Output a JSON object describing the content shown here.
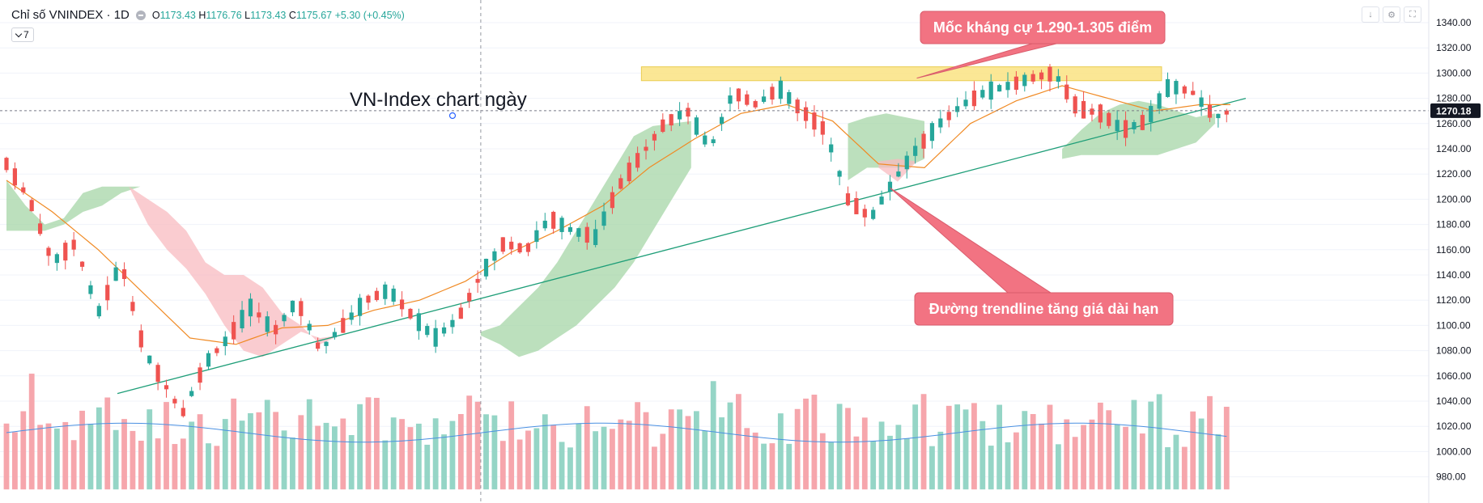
{
  "header": {
    "symbol": "Chỉ số VNINDEX · 1D",
    "open_label": "O",
    "open": "1173.43",
    "high_label": "H",
    "high": "1176.76",
    "low_label": "L",
    "low": "1173.43",
    "close_label": "C",
    "close": "1175.67",
    "change": "+5.30 (+0.45%)",
    "interval_value": "7",
    "tool_icons": [
      "arrow-down-icon",
      "settings-icon",
      "fullscreen-icon"
    ]
  },
  "colors": {
    "up": "#26a69a",
    "down": "#ef5350",
    "vol_up": "#8fd3c3",
    "vol_down": "#f5a1a8",
    "cloud_green": "#a5d6a7",
    "cloud_red": "#f8bbc0",
    "ema": "#f08a24",
    "vol_ma": "#4a90e2",
    "trend": "#1e9e78",
    "zone": "#fbe58a",
    "callout": "#f27382",
    "current_price_bg": "#131722"
  },
  "chart_data": {
    "type": "candlestick",
    "title": "VN-Index chart ngày",
    "ylim": [
      970,
      1345
    ],
    "y_ticks": [
      1340,
      1320,
      1300,
      1280,
      1260,
      1240,
      1220,
      1200,
      1180,
      1160,
      1140,
      1120,
      1100,
      1080,
      1060,
      1040,
      1020,
      1000,
      980
    ],
    "y_tick_labels": [
      "1340.00",
      "1320.00",
      "1300.00",
      "1280.00",
      "1260.00",
      "1240.00",
      "1220.00",
      "1200.00",
      "1180.00",
      "1160.00",
      "1140.00",
      "1120.00",
      "1100.00",
      "1080.00",
      "1060.00",
      "1040.00",
      "1020.00",
      "1000.00",
      "980.00"
    ],
    "current_price": 1270.18,
    "current_price_label": "1270.18",
    "close_path": [
      [
        0,
        1228
      ],
      [
        3,
        1200
      ],
      [
        6,
        1150
      ],
      [
        9,
        1165
      ],
      [
        12,
        1110
      ],
      [
        15,
        1150
      ],
      [
        18,
        1080
      ],
      [
        20,
        1060
      ],
      [
        23,
        1030
      ],
      [
        26,
        1070
      ],
      [
        29,
        1090
      ],
      [
        32,
        1115
      ],
      [
        35,
        1095
      ],
      [
        38,
        1120
      ],
      [
        41,
        1080
      ],
      [
        44,
        1100
      ],
      [
        47,
        1120
      ],
      [
        50,
        1128
      ],
      [
        53,
        1108
      ],
      [
        56,
        1090
      ],
      [
        59,
        1105
      ],
      [
        62,
        1140
      ],
      [
        65,
        1165
      ],
      [
        68,
        1160
      ],
      [
        71,
        1185
      ],
      [
        74,
        1175
      ],
      [
        77,
        1170
      ],
      [
        80,
        1210
      ],
      [
        83,
        1235
      ],
      [
        86,
        1260
      ],
      [
        89,
        1270
      ],
      [
        92,
        1240
      ],
      [
        95,
        1285
      ],
      [
        98,
        1275
      ],
      [
        101,
        1288
      ],
      [
        104,
        1270
      ],
      [
        107,
        1255
      ],
      [
        110,
        1200
      ],
      [
        113,
        1185
      ],
      [
        116,
        1215
      ],
      [
        119,
        1240
      ],
      [
        122,
        1260
      ],
      [
        125,
        1275
      ],
      [
        128,
        1285
      ],
      [
        131,
        1290
      ],
      [
        134,
        1296
      ],
      [
        137,
        1300
      ],
      [
        140,
        1272
      ],
      [
        143,
        1268
      ],
      [
        146,
        1255
      ],
      [
        149,
        1262
      ],
      [
        152,
        1290
      ],
      [
        155,
        1285
      ],
      [
        158,
        1265
      ],
      [
        160,
        1270
      ]
    ],
    "ema_path": [
      [
        0,
        1215
      ],
      [
        6,
        1190
      ],
      [
        12,
        1160
      ],
      [
        18,
        1125
      ],
      [
        24,
        1090
      ],
      [
        30,
        1085
      ],
      [
        36,
        1098
      ],
      [
        42,
        1100
      ],
      [
        48,
        1112
      ],
      [
        54,
        1120
      ],
      [
        60,
        1135
      ],
      [
        66,
        1158
      ],
      [
        72,
        1175
      ],
      [
        78,
        1195
      ],
      [
        84,
        1225
      ],
      [
        90,
        1248
      ],
      [
        96,
        1268
      ],
      [
        102,
        1275
      ],
      [
        108,
        1262
      ],
      [
        114,
        1228
      ],
      [
        120,
        1225
      ],
      [
        126,
        1260
      ],
      [
        132,
        1278
      ],
      [
        138,
        1290
      ],
      [
        144,
        1280
      ],
      [
        150,
        1270
      ],
      [
        156,
        1275
      ],
      [
        160,
        1275
      ]
    ],
    "cloud_green_segments": [
      {
        "start": 0,
        "top": [
          1215,
          1195,
          1180,
          1185,
          1205,
          1210,
          1210,
          1210
        ],
        "bottom": [
          1175,
          1175,
          1175,
          1180,
          1190,
          1195,
          1205,
          1210
        ]
      },
      {
        "start": 62,
        "top": [
          1095,
          1100,
          1115,
          1130,
          1150,
          1175,
          1200,
          1225,
          1250,
          1258,
          1260,
          1262
        ],
        "bottom": [
          1092,
          1085,
          1075,
          1080,
          1090,
          1100,
          1115,
          1130,
          1150,
          1175,
          1200,
          1225
        ]
      },
      {
        "start": 110,
        "top": [
          1260,
          1265,
          1268,
          1265,
          1262
        ],
        "bottom": [
          1215,
          1225,
          1225,
          1225,
          1232
        ]
      },
      {
        "start": 138,
        "top": [
          1240,
          1255,
          1268,
          1275,
          1278,
          1275,
          1270,
          1265,
          1268
        ],
        "bottom": [
          1232,
          1235,
          1235,
          1235,
          1235,
          1235,
          1240,
          1245,
          1260
        ]
      }
    ],
    "cloud_red_segments": [
      {
        "start": 16,
        "top": [
          1210,
          1200,
          1190,
          1175,
          1150,
          1140,
          1140,
          1130,
          1110,
          1100,
          1085,
          1092
        ],
        "bottom": [
          1210,
          1180,
          1160,
          1145,
          1125,
          1100,
          1080,
          1075,
          1085,
          1095,
          1090,
          1092
        ]
      },
      {
        "start": 114,
        "top": [
          1230,
          1232,
          1230
        ],
        "bottom": [
          1225,
          1214,
          1230
        ]
      }
    ],
    "volume": {
      "y_top": 1065,
      "y_bottom": 970,
      "ma_level": 1020
    },
    "trendline": {
      "from": [
        14.5,
        1046
      ],
      "to": [
        162,
        1280
      ]
    },
    "resistance_zone": {
      "from": 83,
      "to": 151,
      "y_low": 1294,
      "y_high": 1305
    },
    "crosshair_x": 62,
    "annotations": [
      {
        "text": "Mốc kháng cự 1.290-1.305 điểm",
        "target": [
          119,
          1296
        ]
      },
      {
        "text": "Đường trendline tăng giá dài hạn",
        "target": [
          115.5,
          1209
        ]
      }
    ]
  }
}
